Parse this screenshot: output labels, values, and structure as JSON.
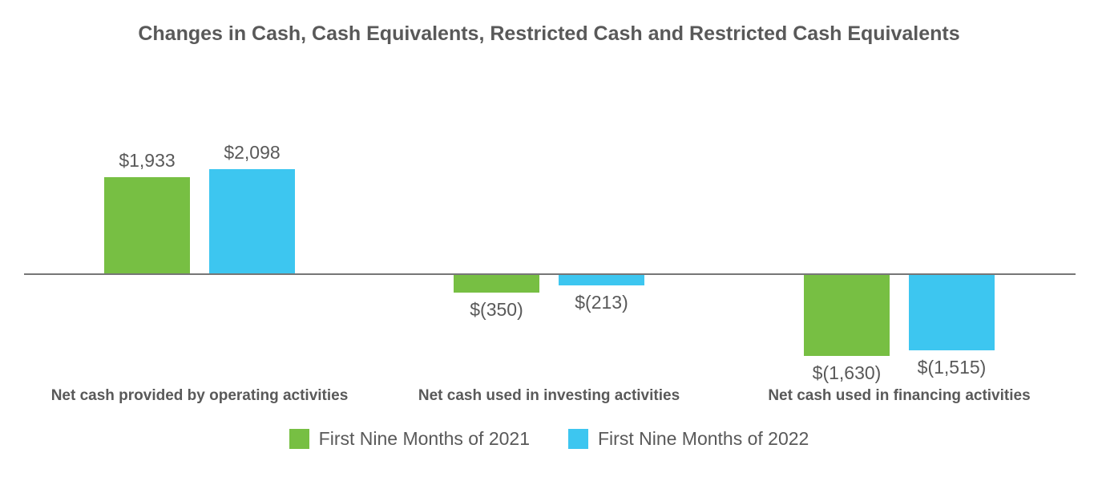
{
  "chart": {
    "title": "Changes in Cash, Cash Equivalents, Restricted Cash and Restricted Cash Equivalents"
  },
  "chart_data": {
    "type": "bar",
    "title": "Changes in Cash, Cash Equivalents, Restricted Cash and Restricted Cash Equivalents",
    "categories": [
      "Net cash provided by operating activities",
      "Net cash used in investing activities",
      "Net cash used in financing activities"
    ],
    "series": [
      {
        "name": "First Nine Months of 2021",
        "color": "#77BF43",
        "values": [
          1933,
          -350,
          -1630
        ],
        "labels": [
          "$1,933",
          "$(350)",
          "$(1,630)"
        ]
      },
      {
        "name": "First Nine Months of 2022",
        "color": "#3DC6F0",
        "values": [
          2098,
          -213,
          -1515
        ],
        "labels": [
          "$2,098",
          "$(213)",
          "$(1,515)"
        ]
      }
    ],
    "xlabel": "",
    "ylabel": "",
    "ylim": [
      -1700,
      2200
    ],
    "grid": false,
    "legend_position": "bottom",
    "axis_color": "#767676",
    "label_color": "#595959"
  }
}
